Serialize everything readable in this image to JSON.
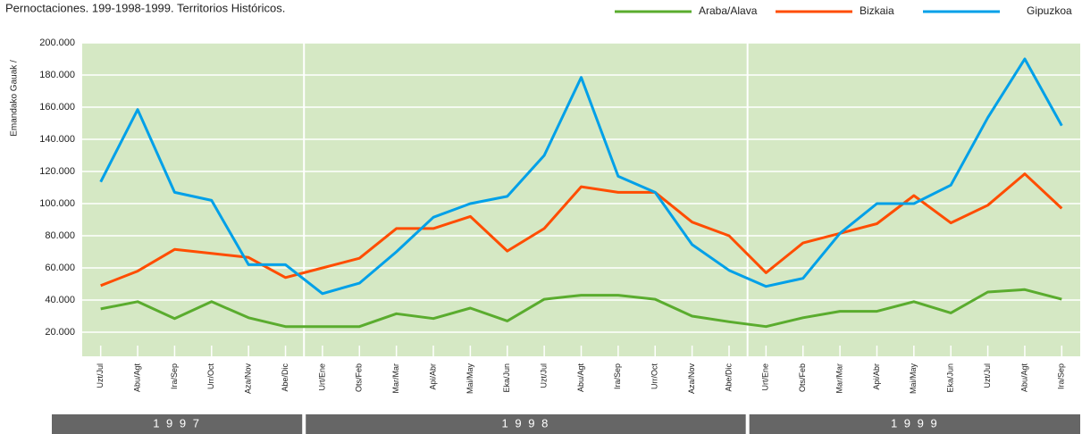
{
  "chart_data": {
    "type": "line",
    "title": "Pernoctaciones. 199-1998-1999. Territorios Históricos.",
    "y_label": "Emandako Gauak /",
    "categories": [
      "Uzt/Jul",
      "Abu/Agt",
      "Ira/Sep",
      "Urr/Oct",
      "Aza/Nov",
      "Abe/Dic",
      "Urt/Ene",
      "Ots/Feb",
      "Mar/Mar",
      "Api/Abr",
      "Mai/May",
      "Eka/Jun",
      "Uzt/Jul",
      "Abu/Agt",
      "Ira/Sep",
      "Urr/Oct",
      "Aza/Nov",
      "Abe/Dic",
      "Urt/Ene",
      "Ots/Feb",
      "Mar/Mar",
      "Api/Abr",
      "Mai/May",
      "Eka/Jun",
      "Uzt/Jul",
      "Abu/Agt",
      "Ira/Sep"
    ],
    "years": [
      "1 9 9 7",
      "1 9 9 8",
      "1 9 9 9"
    ],
    "series": [
      {
        "name": "Araba/Alava",
        "color": "#5aac2e",
        "values": [
          34500,
          39000,
          28500,
          39000,
          29000,
          23500,
          23500,
          23500,
          31500,
          28500,
          35000,
          27000,
          40500,
          43000,
          43000,
          40500,
          30000,
          26500,
          23500,
          29000,
          33000,
          33000,
          39000,
          32000,
          45000,
          46500,
          40500
        ]
      },
      {
        "name": "Bizkaia",
        "color": "#ff4d00",
        "values": [
          49000,
          58000,
          71500,
          69000,
          66500,
          54000,
          60000,
          66000,
          84500,
          84500,
          92000,
          70500,
          84500,
          110500,
          107000,
          107000,
          88500,
          80000,
          57000,
          75500,
          81500,
          87500,
          105000,
          88000,
          99000,
          118500,
          97000
        ]
      },
      {
        "name": "Gipuzkoa",
        "color": "#00a0e8",
        "values": [
          113500,
          158500,
          107000,
          102000,
          62000,
          62000,
          44000,
          50500,
          70000,
          91500,
          100000,
          104500,
          130000,
          178500,
          117000,
          107000,
          74500,
          58500,
          48500,
          53500,
          81500,
          100000,
          100000,
          111500,
          153500,
          190000,
          148500
        ]
      }
    ],
    "ylim": [
      5000,
      200000
    ],
    "yticks": [
      {
        "value": 20000,
        "label": "20.000"
      },
      {
        "value": 40000,
        "label": "40.000"
      },
      {
        "value": 60000,
        "label": "60.000"
      },
      {
        "value": 80000,
        "label": "80.000"
      },
      {
        "value": 100000,
        "label": "100.000"
      },
      {
        "value": 120000,
        "label": "120.000"
      },
      {
        "value": 140000,
        "label": "140.000"
      },
      {
        "value": 160000,
        "label": "160.000"
      },
      {
        "value": 180000,
        "label": "180.000"
      },
      {
        "value": 200000,
        "label": "200.000"
      }
    ],
    "grid": true,
    "background": "#d5e8c4",
    "legend": "top-right"
  }
}
